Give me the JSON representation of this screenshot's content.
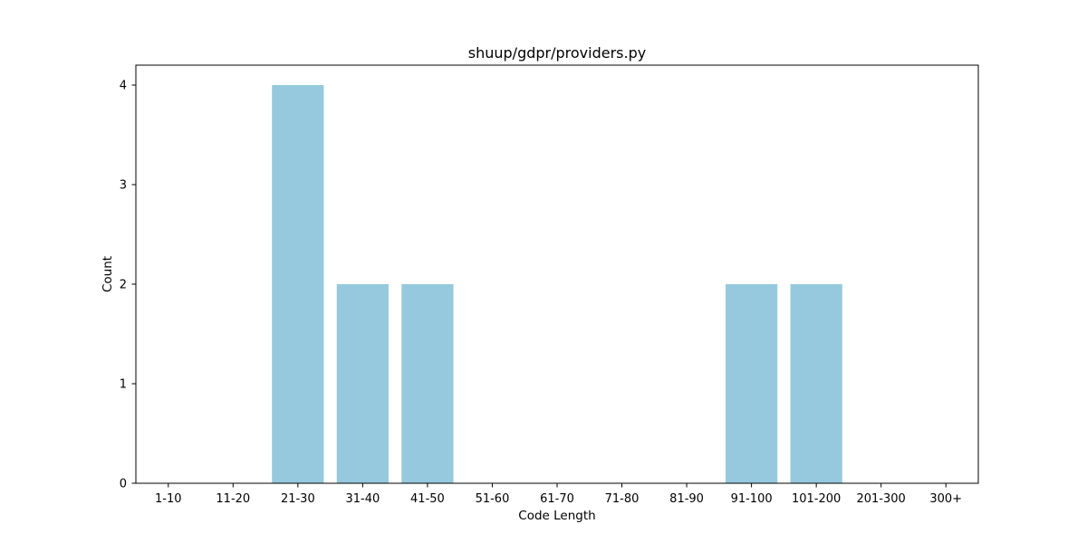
{
  "chart_data": {
    "type": "bar",
    "title": "shuup/gdpr/providers.py",
    "xlabel": "Code Length",
    "ylabel": "Count",
    "categories": [
      "1-10",
      "11-20",
      "21-30",
      "31-40",
      "41-50",
      "51-60",
      "61-70",
      "71-80",
      "81-90",
      "91-100",
      "101-200",
      "201-300",
      "300+"
    ],
    "values": [
      0,
      0,
      4,
      2,
      2,
      0,
      0,
      0,
      0,
      2,
      2,
      0,
      0
    ],
    "ylim": [
      0,
      4.2
    ],
    "yticks": [
      0,
      1,
      2,
      3,
      4
    ],
    "bar_color": "#96c9dd",
    "grid": false,
    "legend": "none"
  }
}
